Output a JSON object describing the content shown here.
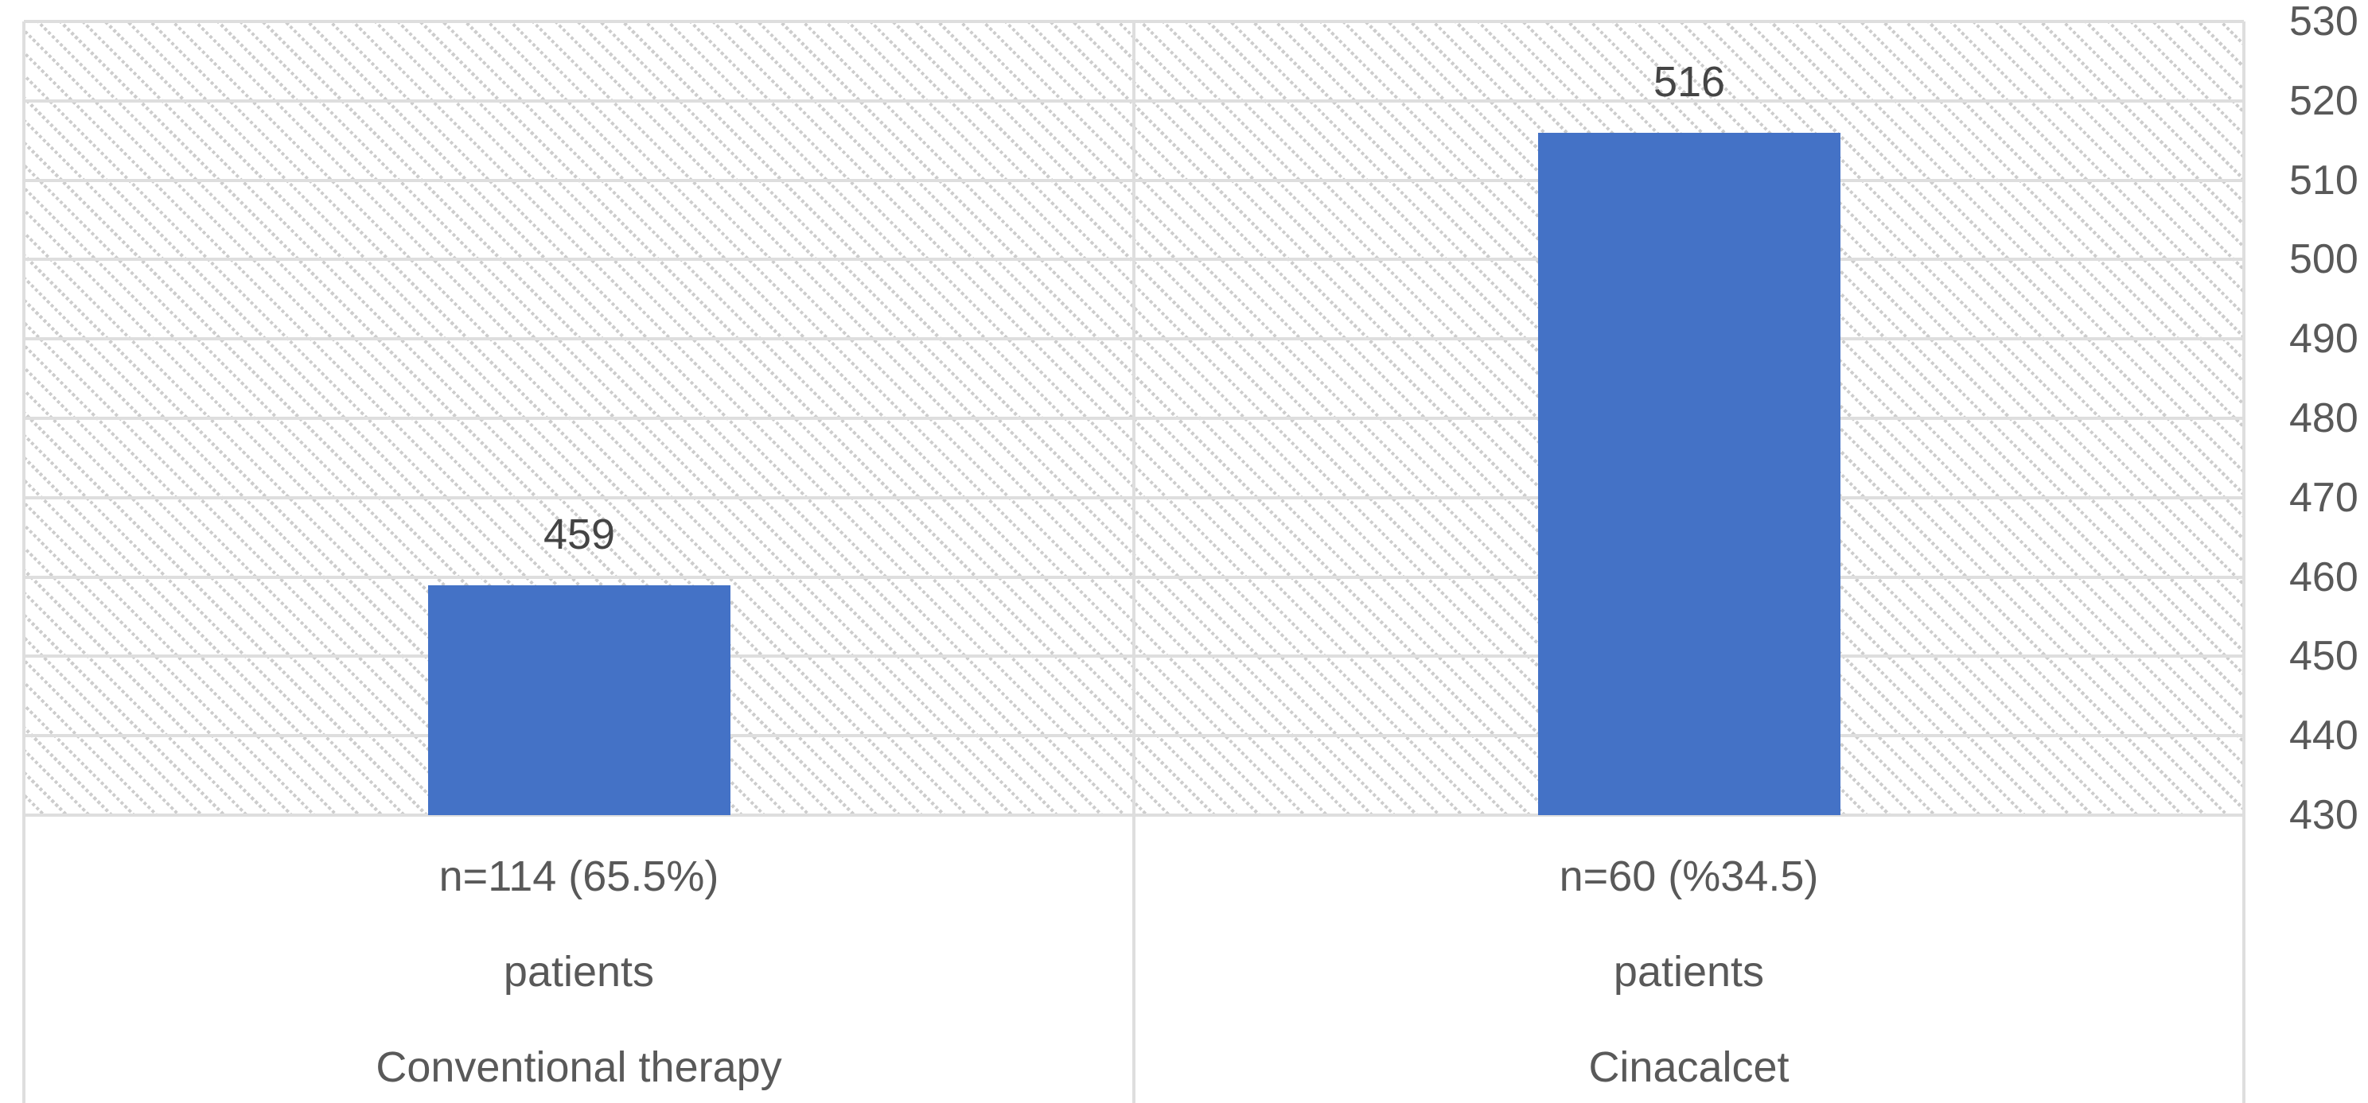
{
  "chart_data": {
    "type": "bar",
    "title": "",
    "legend": "none",
    "grid": "horizontal",
    "plot_bg_pattern": "light-downward-diagonal-hatch",
    "categories": [
      {
        "lines": [
          "n=114 (65.5%)",
          "patients",
          "Conventional therapy"
        ]
      },
      {
        "lines": [
          "n=60 (%34.5)",
          "patients",
          "Cinacalcet"
        ]
      }
    ],
    "values": [
      459,
      516
    ],
    "data_labels": [
      "459",
      "516"
    ],
    "y_axis": {
      "side": "right",
      "min": 430,
      "max": 530,
      "step": 10,
      "ticks": [
        "530",
        "520",
        "510",
        "500",
        "490",
        "480",
        "470",
        "460",
        "450",
        "440",
        "430"
      ]
    },
    "colors": {
      "bar": "#4472C6",
      "gridline": "#DEDEDE",
      "hatch_dot": "#CDCDCD",
      "axis_text": "#595959",
      "data_label_text": "#444444"
    }
  }
}
